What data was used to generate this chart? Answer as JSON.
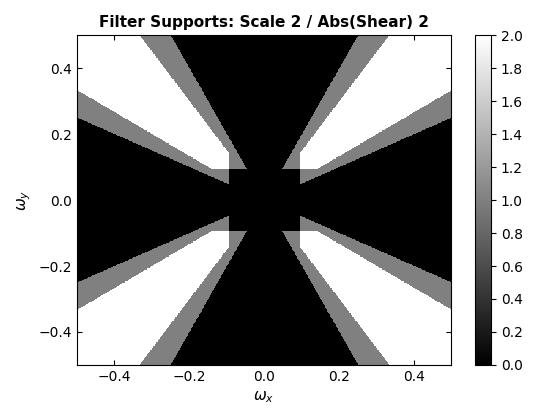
{
  "title": "Filter Supports: Scale 2 / Abs(Shear) 2",
  "xlabel": "$\\omega_x$",
  "ylabel": "$\\omega_y$",
  "scale": 2,
  "abs_shear": 2,
  "cmap": "gray",
  "vmin": 0,
  "vmax": 2,
  "colorbar_ticks": [
    0,
    0.2,
    0.4,
    0.6,
    0.8,
    1.0,
    1.2,
    1.4,
    1.6,
    1.8,
    2.0
  ],
  "n_points": 512,
  "r_inner": 0.09375,
  "shear_slope": 0.5,
  "cone_slope": 1.0,
  "extra_shear_slope": 2.0
}
